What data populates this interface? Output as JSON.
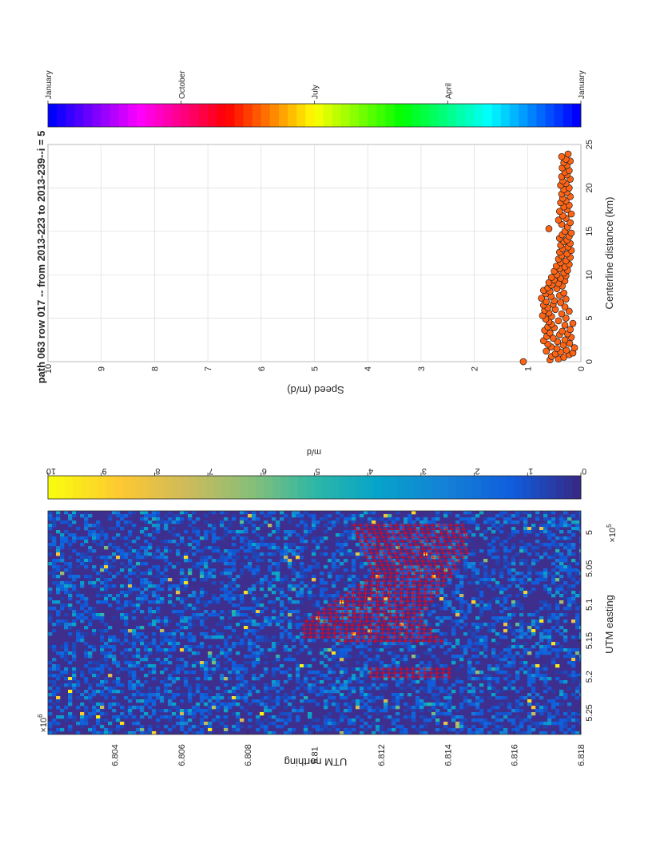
{
  "figure": {
    "title": "path 063 row 017 -- from 2013-223 to 2013-239--i = 5"
  },
  "chart_data": [
    {
      "type": "scatter",
      "name_id": "speed-profile",
      "xlabel": "Centerline distance (km)",
      "ylabel": "Speed (m/d)",
      "xlim": [
        0,
        25
      ],
      "ylim": [
        0,
        10
      ],
      "xticks": [
        "0",
        "5",
        "10",
        "15",
        "20",
        "25"
      ],
      "yticks": [
        "0",
        "1",
        "2",
        "3",
        "4",
        "5",
        "6",
        "7",
        "8",
        "9",
        "10"
      ],
      "grid": true,
      "marker_color": "#ff6414",
      "points": [
        [
          0.0,
          1.08
        ],
        [
          0.2,
          0.58
        ],
        [
          0.3,
          0.42
        ],
        [
          0.5,
          0.32
        ],
        [
          0.6,
          0.55
        ],
        [
          0.8,
          0.22
        ],
        [
          0.9,
          0.48
        ],
        [
          1.0,
          0.15
        ],
        [
          1.1,
          0.38
        ],
        [
          1.2,
          0.65
        ],
        [
          1.3,
          0.27
        ],
        [
          1.5,
          0.45
        ],
        [
          1.6,
          0.12
        ],
        [
          1.7,
          0.56
        ],
        [
          1.9,
          0.33
        ],
        [
          2.0,
          0.62
        ],
        [
          2.1,
          0.21
        ],
        [
          2.3,
          0.44
        ],
        [
          2.4,
          0.7
        ],
        [
          2.5,
          0.3
        ],
        [
          2.7,
          0.52
        ],
        [
          2.8,
          0.18
        ],
        [
          2.9,
          0.64
        ],
        [
          3.1,
          0.4
        ],
        [
          3.2,
          0.25
        ],
        [
          3.3,
          0.58
        ],
        [
          3.5,
          0.35
        ],
        [
          3.6,
          0.68
        ],
        [
          3.7,
          0.2
        ],
        [
          3.9,
          0.5
        ],
        [
          4.0,
          0.62
        ],
        [
          4.2,
          0.3
        ],
        [
          4.3,
          0.55
        ],
        [
          4.4,
          0.15
        ],
        [
          4.6,
          0.6
        ],
        [
          4.7,
          0.42
        ],
        [
          4.9,
          0.66
        ],
        [
          5.0,
          0.28
        ],
        [
          5.2,
          0.55
        ],
        [
          5.3,
          0.72
        ],
        [
          5.5,
          0.36
        ],
        [
          5.6,
          0.6
        ],
        [
          5.8,
          0.22
        ],
        [
          5.9,
          0.68
        ],
        [
          6.0,
          0.48
        ],
        [
          6.2,
          0.62
        ],
        [
          6.3,
          0.3
        ],
        [
          6.5,
          0.7
        ],
        [
          6.6,
          0.52
        ],
        [
          6.8,
          0.38
        ],
        [
          6.9,
          0.65
        ],
        [
          7.0,
          0.5
        ],
        [
          7.2,
          0.28
        ],
        [
          7.3,
          0.74
        ],
        [
          7.5,
          0.56
        ],
        [
          7.6,
          0.4
        ],
        [
          7.8,
          0.66
        ],
        [
          7.9,
          0.32
        ],
        [
          8.1,
          0.58
        ],
        [
          8.2,
          0.7
        ],
        [
          8.4,
          0.45
        ],
        [
          8.5,
          0.62
        ],
        [
          8.7,
          0.35
        ],
        [
          8.8,
          0.55
        ],
        [
          9.0,
          0.42
        ],
        [
          9.1,
          0.6
        ],
        [
          9.3,
          0.3
        ],
        [
          9.4,
          0.5
        ],
        [
          9.6,
          0.38
        ],
        [
          9.7,
          0.55
        ],
        [
          9.9,
          0.28
        ],
        [
          10.0,
          0.45
        ],
        [
          10.2,
          0.32
        ],
        [
          10.4,
          0.5
        ],
        [
          10.5,
          0.25
        ],
        [
          10.7,
          0.4
        ],
        [
          10.9,
          0.3
        ],
        [
          11.0,
          0.46
        ],
        [
          11.2,
          0.22
        ],
        [
          11.4,
          0.38
        ],
        [
          11.6,
          0.28
        ],
        [
          11.8,
          0.42
        ],
        [
          12.0,
          0.2
        ],
        [
          12.2,
          0.36
        ],
        [
          12.4,
          0.26
        ],
        [
          12.6,
          0.4
        ],
        [
          12.8,
          0.18
        ],
        [
          13.0,
          0.34
        ],
        [
          13.2,
          0.24
        ],
        [
          13.4,
          0.38
        ],
        [
          13.6,
          0.2
        ],
        [
          13.8,
          0.32
        ],
        [
          14.0,
          0.26
        ],
        [
          14.2,
          0.4
        ],
        [
          14.4,
          0.22
        ],
        [
          14.6,
          0.35
        ],
        [
          14.8,
          0.18
        ],
        [
          15.0,
          0.3
        ],
        [
          15.3,
          0.6
        ],
        [
          15.5,
          0.25
        ],
        [
          15.8,
          0.36
        ],
        [
          16.0,
          0.2
        ],
        [
          16.3,
          0.42
        ],
        [
          16.5,
          0.28
        ],
        [
          16.8,
          0.34
        ],
        [
          17.0,
          0.18
        ],
        [
          17.3,
          0.4
        ],
        [
          17.5,
          0.26
        ],
        [
          17.8,
          0.32
        ],
        [
          18.0,
          0.22
        ],
        [
          18.3,
          0.38
        ],
        [
          18.5,
          0.28
        ],
        [
          18.8,
          0.34
        ],
        [
          19.0,
          0.2
        ],
        [
          19.3,
          0.36
        ],
        [
          19.5,
          0.26
        ],
        [
          19.8,
          0.32
        ],
        [
          20.0,
          0.22
        ],
        [
          20.3,
          0.38
        ],
        [
          20.5,
          0.28
        ],
        [
          20.8,
          0.34
        ],
        [
          21.0,
          0.2
        ],
        [
          21.3,
          0.36
        ],
        [
          21.5,
          0.26
        ],
        [
          21.8,
          0.3
        ],
        [
          22.0,
          0.22
        ],
        [
          22.3,
          0.35
        ],
        [
          22.6,
          0.26
        ],
        [
          22.9,
          0.32
        ],
        [
          23.1,
          0.2
        ],
        [
          23.3,
          0.28
        ],
        [
          23.6,
          0.36
        ],
        [
          23.9,
          0.24
        ]
      ]
    },
    {
      "type": "heatmap",
      "name_id": "velocity-map",
      "xlabel": "UTM easting",
      "ylabel": "UTM northing",
      "x_exponent_label": "×10",
      "x_exponent": "5",
      "y_exponent_label": "×10",
      "y_exponent": "6",
      "xlim": [
        4.97,
        5.28
      ],
      "ylim": [
        6.802,
        6.818
      ],
      "xticks": [
        "5",
        "5.05",
        "5.1",
        "5.15",
        "5.2",
        "5.25"
      ],
      "yticks": [
        "6.804",
        "6.806",
        "6.808",
        "6.81",
        "6.812",
        "6.814",
        "6.816",
        "6.818"
      ],
      "colorbar_label": "m/d",
      "colorbar_range": [
        0,
        10
      ],
      "colorbar_ticks": [
        "0",
        "1",
        "2",
        "3",
        "4",
        "5",
        "6",
        "7",
        "8",
        "9",
        "10"
      ],
      "background_color": "#3e2f8f",
      "marker_color": "#ff0000",
      "marker": "+",
      "centerline_region": {
        "row_upper": [
          [
            6.8112,
            4.99
          ],
          [
            6.8118,
            5.06
          ],
          [
            6.8108,
            5.09
          ],
          [
            6.8097,
            5.125
          ],
          [
            6.8097,
            5.145
          ],
          [
            6.8116,
            5.155
          ]
        ],
        "row_lower": [
          [
            6.8146,
            4.99
          ],
          [
            6.8146,
            5.03
          ],
          [
            6.8138,
            5.08
          ],
          [
            6.8132,
            5.12
          ],
          [
            6.8142,
            5.165
          ],
          [
            6.8142,
            5.203
          ]
        ],
        "gap_x": [
          5.155,
          5.185
        ]
      }
    },
    {
      "type": "colorbar",
      "name_id": "time-colorbar",
      "ticks": [
        "January",
        "October",
        "July",
        "April",
        "January"
      ],
      "range": [
        0,
        1
      ]
    }
  ]
}
